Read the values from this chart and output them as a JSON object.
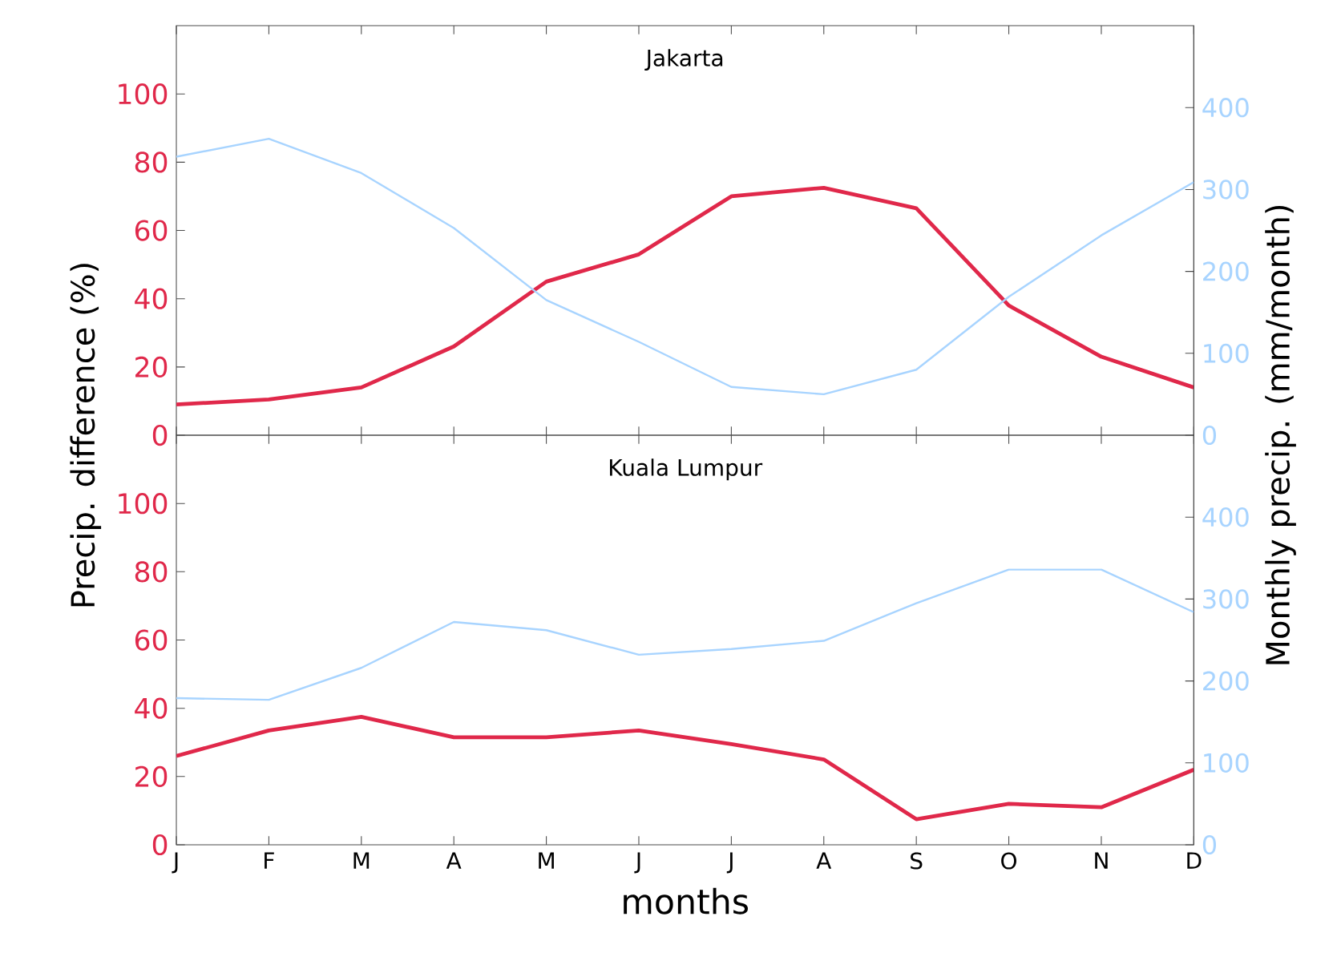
{
  "chart_data": [
    {
      "type": "line",
      "title": "Jakarta",
      "ylabel": "Precip. difference (%)",
      "y2label": "Monthly precip. (mm/month)",
      "categories": [
        null,
        null,
        null,
        null,
        null,
        null,
        null,
        null,
        null,
        null,
        null,
        null
      ],
      "tick_labels": "y",
      "ylim": [
        0,
        120
      ],
      "yticks": [
        0,
        20,
        40,
        60,
        80,
        100
      ],
      "y2lim": [
        0,
        500
      ],
      "y2ticks": [
        0,
        100,
        200,
        300,
        400
      ],
      "series": [
        {
          "color": "#e0284a",
          "axis": "y",
          "values": [
            9,
            10.5,
            14,
            26,
            45,
            53,
            70,
            72.5,
            66.5,
            38,
            23,
            14
          ]
        },
        {
          "color": "#a8d4ff",
          "axis": "y2",
          "values": [
            340,
            362,
            320,
            253,
            165,
            114,
            59,
            50,
            80,
            169,
            244,
            309
          ]
        }
      ]
    },
    {
      "type": "line",
      "title": "Kuala Lumpur",
      "xlabel": "months",
      "categories": [
        "J",
        "F",
        "M",
        "A",
        "M",
        "J",
        "J",
        "A",
        "S",
        "O",
        "N",
        "D"
      ],
      "ylim": [
        0,
        120
      ],
      "yticks": [
        0,
        20,
        40,
        60,
        80,
        100
      ],
      "y2lim": [
        0,
        500
      ],
      "y2ticks": [
        0,
        100,
        200,
        300,
        400
      ],
      "series": [
        {
          "color": "#e0284a",
          "axis": "y",
          "values": [
            26,
            33.5,
            37.5,
            31.5,
            31.5,
            33.5,
            29.5,
            25,
            7.5,
            12,
            11,
            22
          ]
        },
        {
          "color": "#a8d4ff",
          "axis": "y2",
          "values": [
            179,
            177,
            216,
            272,
            262,
            232,
            239,
            249,
            295,
            336,
            336,
            284
          ]
        }
      ]
    }
  ]
}
